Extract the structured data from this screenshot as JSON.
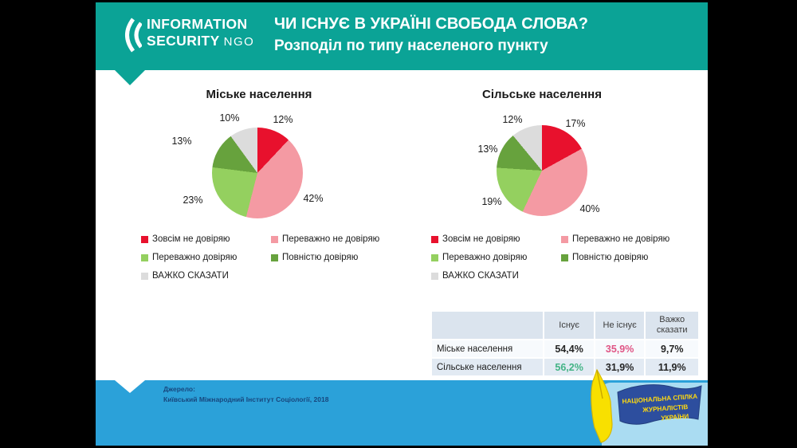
{
  "header": {
    "logo": {
      "mark": "((",
      "line1": "INFORMATION",
      "line2": "SECURITY",
      "suffix": "NGO"
    },
    "title": "ЧИ ІСНУЄ В УКРАЇНІ СВОБОДА СЛОВА?",
    "subtitle": "Розподіл по типу населеного пункту"
  },
  "colors": {
    "header_teal": "#0ba396",
    "footer_blue": "#2ba1d9",
    "source_navy": "#17477e",
    "slice_red": "#e8112d",
    "slice_pink": "#f49aa3",
    "slice_light_green": "#94d05f",
    "slice_dark_green": "#67a23d",
    "slice_gray": "#dcdcdc",
    "table_header_bg": "#dbe4ee",
    "table_band_bg": "#e2eaf3",
    "value_pink": "#e0558501",
    "value_green": "#43b385"
  },
  "chart_data": [
    {
      "type": "pie",
      "title": "Міське населення",
      "labels": [
        "Зовсім не довіряю",
        "Переважно не довіряю",
        "Переважно довіряю",
        "Повністю довіряю",
        "ВАЖКО СКАЗАТИ"
      ],
      "values": [
        12,
        42,
        23,
        13,
        10
      ],
      "value_labels": [
        "12%",
        "42%",
        "23%",
        "13%",
        "10%"
      ],
      "colors": [
        "#e8112d",
        "#f49aa3",
        "#94d05f",
        "#67a23d",
        "#dcdcdc"
      ],
      "start_angle_deg": 0,
      "direction": "clockwise",
      "legend_position": "below"
    },
    {
      "type": "pie",
      "title": "Сільське населення",
      "labels": [
        "Зовсім не довіряю",
        "Переважно не довіряю",
        "Переважно довіряю",
        "Повністю довіряю",
        "ВАЖКО СКАЗАТИ"
      ],
      "values": [
        17,
        40,
        19,
        13,
        12
      ],
      "value_labels": [
        "17%",
        "40%",
        "19%",
        "13%",
        "12%"
      ],
      "colors": [
        "#e8112d",
        "#f49aa3",
        "#94d05f",
        "#67a23d",
        "#dcdcdc"
      ],
      "start_angle_deg": 0,
      "direction": "clockwise",
      "legend_position": "below"
    }
  ],
  "table": {
    "columns": [
      "",
      "Існує",
      "Не існує",
      "Важко сказати"
    ],
    "rows": [
      {
        "label": "Міське населення",
        "cells": [
          {
            "text": "54,4%"
          },
          {
            "text": "35,9%",
            "color": "#e05585"
          },
          {
            "text": "9,7%"
          }
        ]
      },
      {
        "label": "Сільське населення",
        "cells": [
          {
            "text": "56,2%",
            "color": "#43b385"
          },
          {
            "text": "31,9%"
          },
          {
            "text": "11,9%"
          }
        ]
      }
    ]
  },
  "footer": {
    "source_label": "Джерело:",
    "source_text": "Київський Міжнародний Інститут Соціології, 2018"
  },
  "nsju_logo": {
    "line1": "НАЦІОНАЛЬНА СПІЛКА",
    "line2": "ЖУРНАЛІСТІВ",
    "line3": "УКРАЇНИ"
  }
}
